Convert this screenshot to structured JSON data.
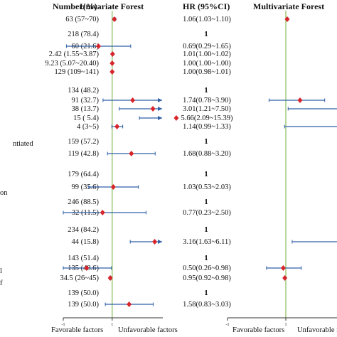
{
  "headers": {
    "number": "Number(%)",
    "univariate": "Univariate Forest",
    "hr": "HR (95%CI)",
    "multivariate": "Multivariate Forest"
  },
  "footer": {
    "uni_left": "Favorable factors",
    "uni_right": "Unfavorable factors",
    "multi_left": "Favorable factors",
    "multi_right": "Unfavorable f"
  },
  "colors": {
    "point": "#d7262b",
    "ci": "#2f5fa8",
    "reference": "#7ab648",
    "axis": "#333333"
  },
  "edge_labels": [
    {
      "id": "lbl-a",
      "text": "ntiated"
    },
    {
      "id": "lbl-b",
      "text": "on"
    },
    {
      "id": "lbl-c",
      "text": "l"
    },
    {
      "id": "lbl-d",
      "text": "f"
    }
  ],
  "chart_data": [
    {
      "type": "forest",
      "title": "Univariate Forest",
      "reference_line": 1,
      "axis_ticks": [
        "-1",
        "1"
      ],
      "rows": [
        {
          "number": "63 (57~70)",
          "hr": "1.06(1.03~1.10)",
          "point": 1.06,
          "lo": 1.03,
          "hi": 1.1
        },
        {
          "number": "218 (78.4)",
          "hr": "1",
          "reference": true
        },
        {
          "number": "60 (21.6)",
          "hr": "0.69(0.29~1.65)",
          "point": 0.69,
          "lo": 0.29,
          "hi": 1.65
        },
        {
          "number": "2.42 (1.55~3.87)",
          "hr": "1.01(1.00~1.02)",
          "point": 1.01,
          "lo": 1.0,
          "hi": 1.02
        },
        {
          "number": "9.23 (5.07~20.40)",
          "hr": "1.00(1.00~1.00)",
          "point": 1.0,
          "lo": 1.0,
          "hi": 1.0
        },
        {
          "number": "129 (109~141)",
          "hr": "1.00(0.98~1.01)",
          "point": 1.0,
          "lo": 0.98,
          "hi": 1.01
        },
        {
          "number": "134 (48.2)",
          "hr": "1",
          "reference": true
        },
        {
          "number": "91 (32.7)",
          "hr": "1.74(0.78~3.90)",
          "point": 1.74,
          "lo": 0.78,
          "hi": 3.9
        },
        {
          "number": "38 (13.7)",
          "hr": "3.01(1.21~7.50)",
          "point": 3.01,
          "lo": 1.21,
          "hi": 7.5
        },
        {
          "number": "15 ( 5.4)",
          "hr": "5.66(2.09~15.39)",
          "point": 5.66,
          "lo": 2.09,
          "hi": 15.39
        },
        {
          "number": "4 (3~5)",
          "hr": "1.14(0.99~1.33)",
          "point": 1.14,
          "lo": 0.99,
          "hi": 1.33
        },
        {
          "number": "159 (57.2)",
          "hr": "1",
          "reference": true
        },
        {
          "number": "119 (42.8)",
          "hr": "1.68(0.88~3.20)",
          "point": 1.68,
          "lo": 0.88,
          "hi": 3.2
        },
        {
          "number": "179 (64.4)",
          "hr": "1",
          "reference": true
        },
        {
          "number": "99 (35.6)",
          "hr": "1.03(0.53~2.03)",
          "point": 1.03,
          "lo": 0.53,
          "hi": 2.03
        },
        {
          "number": "246 (88.5)",
          "hr": "1",
          "reference": true
        },
        {
          "number": "32 (11.5)",
          "hr": "0.77(0.23~2.50)",
          "point": 0.77,
          "lo": 0.23,
          "hi": 2.5
        },
        {
          "number": "234 (84.2)",
          "hr": "1",
          "reference": true
        },
        {
          "number": "44 (15.8)",
          "hr": "3.16(1.63~6.11)",
          "point": 3.16,
          "lo": 1.63,
          "hi": 6.11
        },
        {
          "number": "143 (51.4)",
          "hr": "1",
          "reference": true
        },
        {
          "number": "135 (48.6)",
          "hr": "0.50(0.26~0.98)",
          "point": 0.5,
          "lo": 0.26,
          "hi": 0.98
        },
        {
          "number": "34.5 (26~45)",
          "hr": "0.95(0.92~0.98)",
          "point": 0.95,
          "lo": 0.92,
          "hi": 0.98
        },
        {
          "number": "139 (50.0)",
          "hr": "1",
          "reference": true
        },
        {
          "number": "139 (50.0)",
          "hr": "1.58(0.83~3.03)",
          "point": 1.58,
          "lo": 0.83,
          "hi": 3.03
        }
      ]
    },
    {
      "type": "forest",
      "title": "Multivariate Forest",
      "reference_line": 1,
      "axis_ticks": [
        "-1",
        "1"
      ],
      "rows": [
        {
          "row_index": 0,
          "point": 1.06,
          "lo": 1.03,
          "hi": 1.1
        },
        {
          "row_index": 7,
          "point": 1.8,
          "lo": 0.5,
          "hi": 5.0
        },
        {
          "row_index": 8,
          "lo": 1.1,
          "hi": 8.0,
          "clipped_right": true
        },
        {
          "row_index": 10,
          "lo": 0.95,
          "hi": 8.0,
          "clipped_right": true
        },
        {
          "row_index": 18,
          "lo": 1.3,
          "hi": 8.0,
          "clipped_right": true
        },
        {
          "row_index": 20,
          "point": 0.9,
          "lo": 0.45,
          "hi": 1.9
        },
        {
          "row_index": 21,
          "point": 0.96,
          "lo": 0.93,
          "hi": 0.99
        }
      ]
    }
  ]
}
